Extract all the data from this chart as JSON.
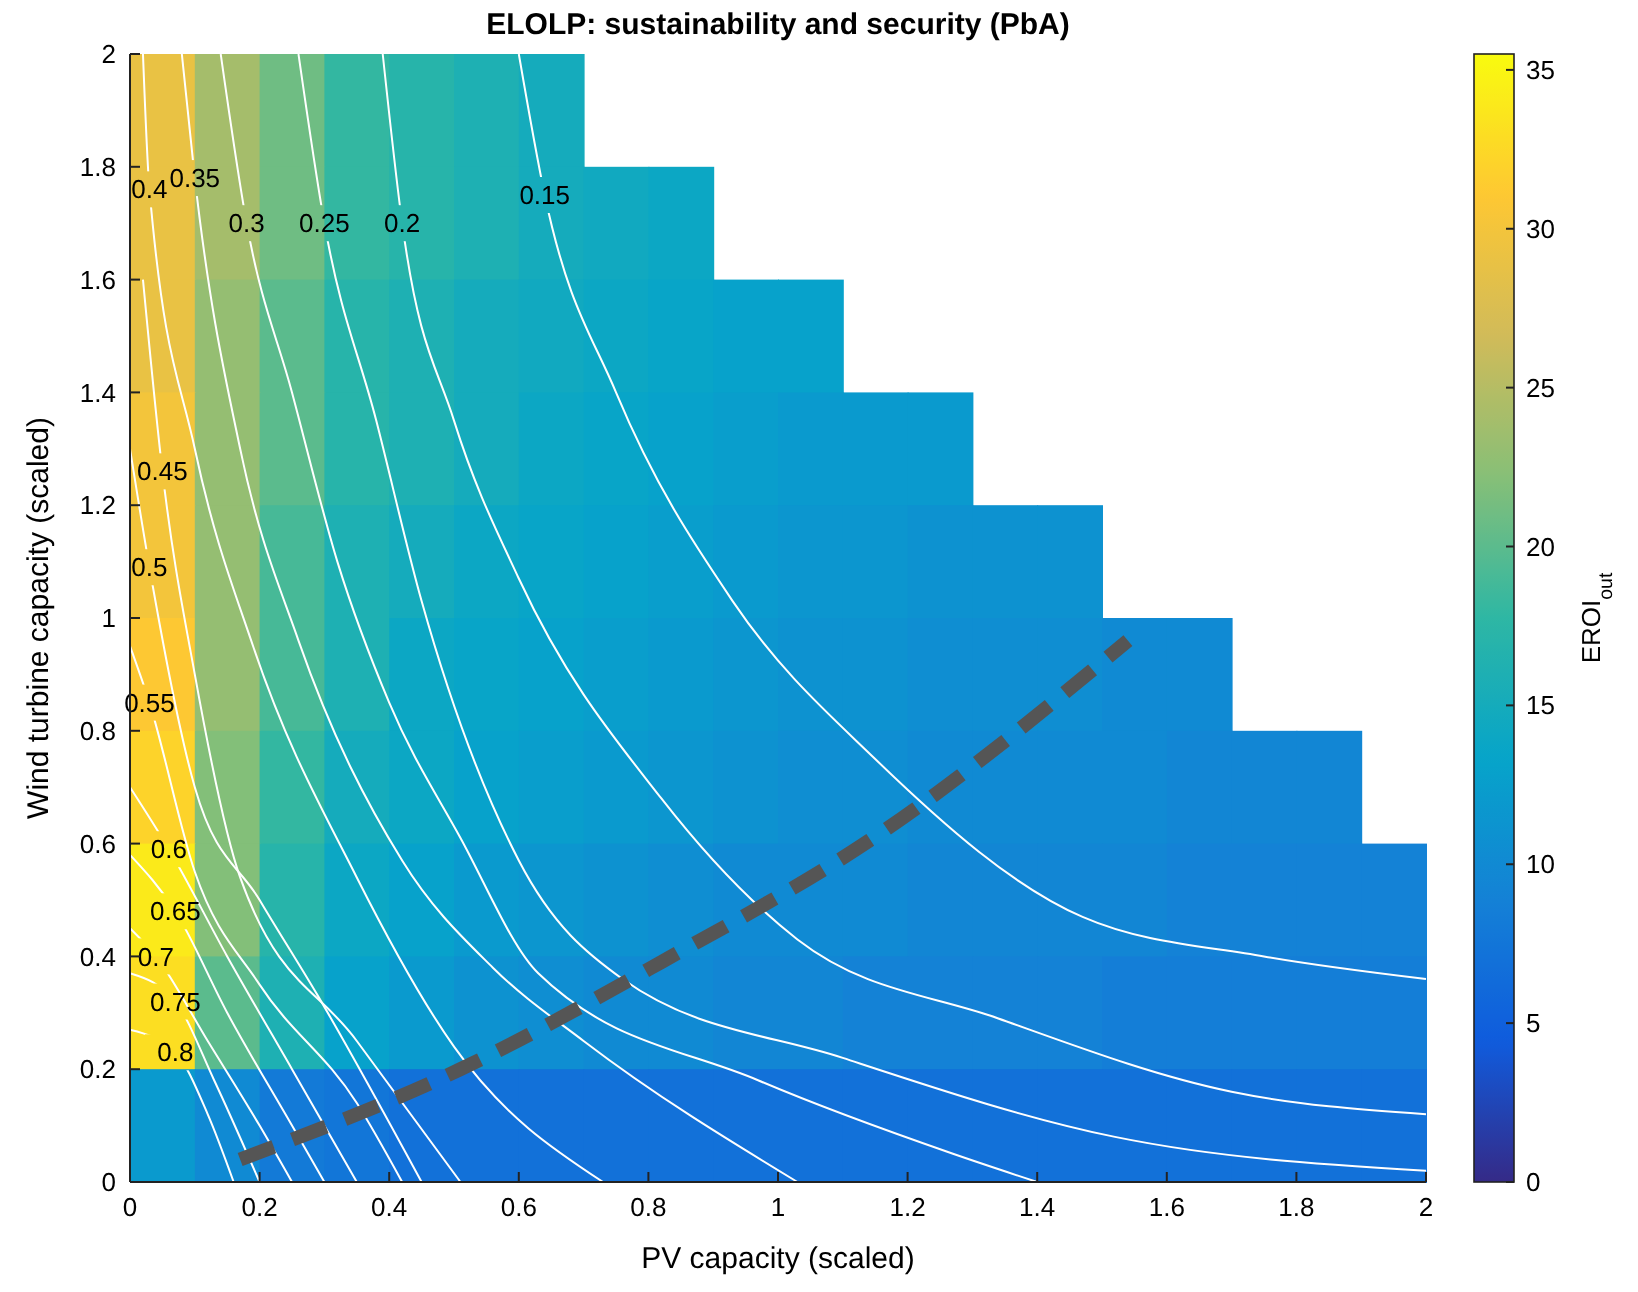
{
  "chart_data": {
    "type": "heatmap",
    "title": "ELOLP: sustainability and security (PbA)",
    "xlabel": "PV capacity (scaled)",
    "ylabel": "Wind turbine capacity (scaled)",
    "clabel": "EROI$_{out}$",
    "xlim": [
      0,
      2
    ],
    "xticks": [
      0,
      0.2,
      0.4,
      0.6,
      0.8,
      1,
      1.2,
      1.4,
      1.6,
      1.8,
      2
    ],
    "ylim": [
      0,
      2
    ],
    "yticks": [
      0,
      0.2,
      0.4,
      0.6,
      0.8,
      1,
      1.2,
      1.4,
      1.6,
      1.8,
      2
    ],
    "clim": [
      0,
      35.5
    ],
    "cticks": [
      0,
      5,
      10,
      15,
      20,
      25,
      30,
      35
    ],
    "grid": false,
    "cells": [
      [
        29,
        24,
        21,
        18,
        17,
        16,
        15,
        null,
        null,
        null,
        null,
        null,
        null,
        null,
        null,
        null,
        null,
        null,
        null,
        null
      ],
      [
        29,
        24,
        21,
        18,
        17,
        16,
        15,
        14.5,
        14,
        null,
        null,
        null,
        null,
        null,
        null,
        null,
        null,
        null,
        null,
        null
      ],
      [
        29,
        23,
        20,
        17,
        16,
        15,
        14.5,
        14,
        13.5,
        13,
        13,
        null,
        null,
        null,
        null,
        null,
        null,
        null,
        null,
        null
      ],
      [
        30,
        23,
        20,
        17,
        16,
        15,
        14,
        13.5,
        13,
        12.5,
        12,
        12,
        12,
        null,
        null,
        null,
        null,
        null,
        null,
        null
      ],
      [
        30,
        23,
        19,
        16,
        15,
        14,
        13.5,
        13,
        12.5,
        12,
        11.5,
        11.5,
        11,
        11,
        11,
        null,
        null,
        null,
        null,
        null
      ],
      [
        31,
        23,
        19,
        16,
        14,
        13.5,
        13,
        12.5,
        12,
        11.5,
        11,
        11,
        10.5,
        10.5,
        10.5,
        10,
        10,
        null,
        null,
        null
      ],
      [
        32,
        22,
        18,
        15,
        14,
        13,
        12.5,
        12,
        11.5,
        11,
        10.5,
        10.5,
        10,
        10,
        10,
        10,
        9.5,
        9.5,
        9.5,
        null
      ],
      [
        34,
        22,
        17,
        14,
        13,
        12,
        11.5,
        11,
        10.5,
        10,
        10,
        10,
        9.5,
        9.5,
        9.5,
        9.5,
        9,
        9,
        9,
        9
      ],
      [
        33,
        20,
        16,
        13,
        12,
        11,
        10.5,
        10,
        10,
        9.5,
        9.5,
        9,
        9,
        9,
        9,
        8.5,
        8.5,
        8.5,
        8.5,
        8.5
      ],
      [
        12,
        10,
        8,
        7.5,
        7,
        7,
        7,
        7,
        7,
        7,
        7,
        7,
        7,
        7,
        7,
        7,
        7,
        7,
        7,
        7
      ]
    ],
    "series": [
      {
        "type": "line",
        "name": "0.15",
        "color": "#ffffff",
        "x": [
          0.6,
          0.64,
          0.75,
          0.93,
          1.15,
          1.47,
          1.75,
          2
        ],
        "values": [
          2,
          1.75,
          1.4,
          1.03,
          0.75,
          0.47,
          0.4,
          0.36
        ]
      },
      {
        "type": "line",
        "name": "0.2",
        "color": "#ffffff",
        "x": [
          0.39,
          0.42,
          0.5,
          0.6,
          0.82,
          1.03,
          1.34,
          1.7,
          2
        ],
        "values": [
          2,
          1.7,
          1.35,
          1.07,
          0.68,
          0.43,
          0.29,
          0.16,
          0.12
        ]
      },
      {
        "type": "line",
        "name": "0.25",
        "color": "#ffffff",
        "x": [
          0.26,
          0.3,
          0.38,
          0.45,
          0.6,
          0.76,
          1.1,
          1.52,
          2
        ],
        "values": [
          2,
          1.7,
          1.35,
          1.03,
          0.57,
          0.36,
          0.22,
          0.08,
          0.02
        ]
      },
      {
        "type": "line",
        "name": "0.3",
        "color": "#ffffff",
        "x": [
          0.14,
          0.18,
          0.25,
          0.32,
          0.4,
          0.51,
          0.63,
          0.97,
          1.27,
          1.4
        ],
        "values": [
          2,
          1.7,
          1.4,
          1.1,
          0.85,
          0.61,
          0.37,
          0.18,
          0.05,
          0
        ]
      },
      {
        "type": "line",
        "name": "0.35",
        "color": "#ffffff",
        "x": [
          0.08,
          0.1,
          0.17,
          0.26,
          0.42,
          0.56,
          0.7,
          1.03
        ],
        "values": [
          2,
          1.78,
          1.3,
          0.96,
          0.57,
          0.38,
          0.25,
          0
        ]
      },
      {
        "type": "line",
        "name": "0.4",
        "color": "#ffffff",
        "x": [
          0.02,
          0.03,
          0.1,
          0.19,
          0.35,
          0.5,
          0.73
        ],
        "values": [
          2,
          1.76,
          1.3,
          0.95,
          0.54,
          0.24,
          0
        ]
      },
      {
        "type": "line",
        "name": "0.45",
        "color": "#ffffff",
        "x": [
          0.02,
          0.05,
          0.1,
          0.17,
          0.35,
          0.51
        ],
        "values": [
          1.6,
          1.26,
          0.9,
          0.54,
          0.25,
          0
        ]
      },
      {
        "type": "line",
        "name": "0.5",
        "color": "#ffffff",
        "x": [
          0,
          0.03,
          0.1,
          0.2,
          0.29,
          0.45
        ],
        "values": [
          1.3,
          1.09,
          0.7,
          0.5,
          0.33,
          0
        ]
      },
      {
        "type": "line",
        "name": "0.55",
        "color": "#ffffff",
        "x": [
          0,
          0.03,
          0.1,
          0.2,
          0.35,
          0.42
        ],
        "values": [
          0.95,
          0.85,
          0.55,
          0.35,
          0.14,
          0
        ]
      },
      {
        "type": "line",
        "name": "0.6",
        "color": "#ffffff",
        "x": [
          0,
          0.06,
          0.15,
          0.25,
          0.35
        ],
        "values": [
          0.7,
          0.59,
          0.4,
          0.2,
          0
        ]
      },
      {
        "type": "line",
        "name": "0.65",
        "color": "#ffffff",
        "x": [
          0,
          0.07,
          0.15,
          0.25,
          0.3
        ],
        "values": [
          0.58,
          0.48,
          0.3,
          0.1,
          0
        ]
      },
      {
        "type": "line",
        "name": "0.7",
        "color": "#ffffff",
        "x": [
          0,
          0.04,
          0.12,
          0.2,
          0.25
        ],
        "values": [
          0.45,
          0.4,
          0.25,
          0.1,
          0
        ]
      },
      {
        "type": "line",
        "name": "0.75",
        "color": "#ffffff",
        "x": [
          0,
          0.07,
          0.13,
          0.2
        ],
        "values": [
          0.37,
          0.32,
          0.18,
          0
        ]
      },
      {
        "type": "line",
        "name": "0.8",
        "color": "#ffffff",
        "x": [
          0,
          0.07,
          0.12,
          0.16
        ],
        "values": [
          0.27,
          0.23,
          0.12,
          0
        ]
      },
      {
        "type": "line",
        "color": "#555555",
        "line_style": "dashed",
        "x": [
          0.17,
          0.51,
          0.82,
          1.16,
          1.54
        ],
        "values": [
          0.04,
          0.2,
          0.39,
          0.62,
          0.96
        ]
      }
    ]
  }
}
